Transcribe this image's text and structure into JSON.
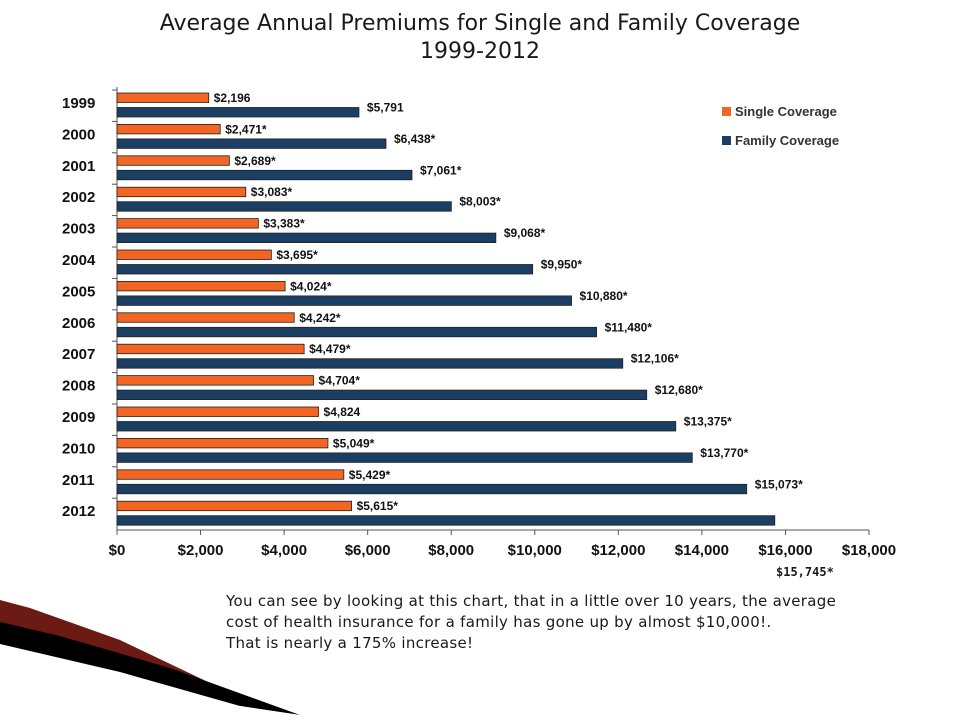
{
  "slide": {
    "title_line1": "Average Annual Premiums for Single and Family Coverage",
    "title_line2": "1999-2012",
    "caption_lines": [
      "You can see by looking at this chart, that in a little over 10 years, the average",
      "cost of health insurance for a family has gone up by almost $10,000!.",
      "That is nearly a 175% increase!"
    ],
    "floating_label": "$15,745*"
  },
  "colors": {
    "single": "#f26522",
    "family": "#1b3f63",
    "bar_stroke": "#222222",
    "axis": "#555555",
    "swoosh_dark": "#6b1b14",
    "swoosh_black": "#000000"
  },
  "chart_data": {
    "type": "bar",
    "orientation": "horizontal",
    "categories": [
      "1999",
      "2000",
      "2001",
      "2002",
      "2003",
      "2004",
      "2005",
      "2006",
      "2007",
      "2008",
      "2009",
      "2010",
      "2011",
      "2012"
    ],
    "series": [
      {
        "name": "Single Coverage",
        "values": [
          2196,
          2471,
          2689,
          3083,
          3383,
          3695,
          4024,
          4242,
          4479,
          4704,
          4824,
          5049,
          5429,
          5615
        ],
        "labels": [
          "$2,196",
          "$2,471*",
          "$2,689*",
          "$3,083*",
          "$3,383*",
          "$3,695*",
          "$4,024*",
          "$4,242*",
          "$4,479*",
          "$4,704*",
          "$4,824",
          "$5,049*",
          "$5,429*",
          "$5,615*"
        ]
      },
      {
        "name": "Family Coverage",
        "values": [
          5791,
          6438,
          7061,
          8003,
          9068,
          9950,
          10880,
          11480,
          12106,
          12680,
          13375,
          13770,
          15073,
          15745
        ],
        "labels": [
          "$5,791",
          "$6,438*",
          "$7,061*",
          "$8,003*",
          "$9,068*",
          "$9,950*",
          "$10,880*",
          "$11,480*",
          "$12,106*",
          "$12,680*",
          "$13,375*",
          "$13,770*",
          "$15,073*",
          ""
        ]
      }
    ],
    "xlim": [
      0,
      18000
    ],
    "xticks": [
      0,
      2000,
      4000,
      6000,
      8000,
      10000,
      12000,
      14000,
      16000,
      18000
    ],
    "xtick_labels": [
      "$0",
      "$2,000",
      "$4,000",
      "$6,000",
      "$8,000",
      "$10,000",
      "$12,000",
      "$14,000",
      "$16,000",
      "$18,000"
    ],
    "legend_position": "top-right",
    "grid": false
  }
}
